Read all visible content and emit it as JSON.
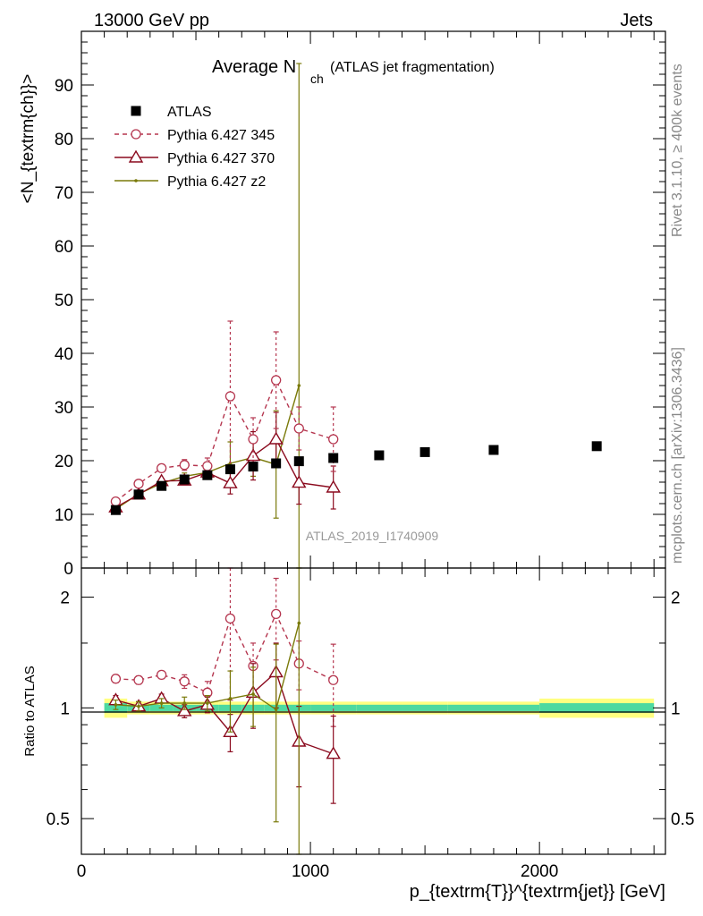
{
  "header": {
    "left": "13000 GeV pp",
    "right": "Jets"
  },
  "side_labels": {
    "top": "Rivet 3.1.10, ≥ 400k events",
    "bottom": "mcplots.cern.ch [arXiv:1306.3436]"
  },
  "analysis_label": "ATLAS_2019_I1740909",
  "colors": {
    "data": "#000000",
    "p345": "#b5364f",
    "p370": "#8b0a1e",
    "z2": "#7a7a0a",
    "band_inner": "#4dd9a0",
    "band_outer": "#ffff80"
  },
  "chart_data": [
    {
      "type": "scatter",
      "title_main": "Average N",
      "title_sub": "ch",
      "title_paren": "(ATLAS jet fragmentation)",
      "ylabel": "<N_{textrm{ch}}>",
      "xlim": [
        0,
        2550
      ],
      "ylim": [
        0,
        100
      ],
      "yticks": [
        0,
        10,
        20,
        30,
        40,
        50,
        60,
        70,
        80,
        90
      ],
      "legend_position": "top-left",
      "series": [
        {
          "name": "ATLAS",
          "key": "data",
          "style": "marker-square",
          "x": [
            150,
            250,
            350,
            450,
            550,
            650,
            750,
            850,
            950,
            1100,
            1300,
            1500,
            1800,
            2250
          ],
          "y": [
            10.8,
            13.7,
            15.3,
            16.5,
            17.3,
            18.4,
            18.9,
            19.5,
            19.9,
            20.5,
            21.0,
            21.6,
            22.0,
            22.7
          ],
          "err": [
            0.3,
            0.3,
            0.3,
            0.3,
            0.4,
            0.4,
            0.4,
            0.5,
            0.5,
            0.5,
            0.5,
            0.6,
            0.6,
            0.8
          ]
        },
        {
          "name": "Pythia 6.427 345",
          "key": "p345",
          "style": "dashed-circle",
          "x": [
            150,
            250,
            350,
            450,
            550,
            650,
            750,
            850,
            950,
            1100
          ],
          "y": [
            12.4,
            15.7,
            18.6,
            19.2,
            19.0,
            32.0,
            24.0,
            35.0,
            26.0,
            24.0
          ],
          "err": [
            0.5,
            0.6,
            0.6,
            1.0,
            1.5,
            14.0,
            4.0,
            9.0,
            4.0,
            6.0
          ]
        },
        {
          "name": "Pythia 6.427 370",
          "key": "p370",
          "style": "solid-triangle",
          "x": [
            150,
            250,
            350,
            450,
            550,
            650,
            750,
            850,
            950,
            1100
          ],
          "y": [
            11.3,
            13.7,
            16.2,
            16.3,
            17.8,
            15.8,
            20.9,
            24.0,
            15.9,
            15.0
          ],
          "err": [
            0.4,
            0.4,
            0.5,
            0.6,
            0.8,
            2.0,
            4.5,
            5.0,
            4.0,
            4.0
          ]
        },
        {
          "name": "Pythia 6.427 z2",
          "key": "z2",
          "style": "solid-dot",
          "x": [
            150,
            250,
            350,
            450,
            550,
            650,
            750,
            850,
            950
          ],
          "y": [
            11.0,
            13.8,
            15.8,
            17.1,
            17.8,
            19.5,
            20.6,
            19.3,
            34.0
          ],
          "err": [
            0.4,
            0.4,
            0.5,
            0.6,
            0.8,
            4.0,
            3.5,
            10.0,
            60.0
          ]
        }
      ]
    },
    {
      "type": "scatter",
      "ylabel": "Ratio to ATLAS",
      "xlabel": "p_{textrm{T}}^{textrm{jet}} [GeV]",
      "xlim": [
        0,
        2550
      ],
      "ylim": [
        0.4,
        2.4
      ],
      "yscale": "log",
      "yticks": [
        0.5,
        1,
        2
      ],
      "xticks": [
        0,
        1000,
        2000
      ],
      "series": [
        {
          "name": "Pythia 6.427 345",
          "key": "p345",
          "x": [
            150,
            250,
            350,
            450,
            550,
            650,
            750,
            850,
            950,
            1100
          ],
          "y": [
            1.2,
            1.19,
            1.23,
            1.18,
            1.1,
            1.75,
            1.3,
            1.8,
            1.32,
            1.19
          ],
          "err": [
            0.03,
            0.03,
            0.03,
            0.05,
            0.08,
            0.7,
            0.2,
            0.45,
            0.2,
            0.3
          ]
        },
        {
          "name": "Pythia 6.427 370",
          "key": "p370",
          "x": [
            150,
            250,
            350,
            450,
            550,
            650,
            750,
            850,
            950,
            1100
          ],
          "y": [
            1.05,
            1.01,
            1.06,
            0.98,
            1.02,
            0.86,
            1.1,
            1.25,
            0.81,
            0.75
          ],
          "err": [
            0.03,
            0.03,
            0.03,
            0.04,
            0.05,
            0.1,
            0.22,
            0.25,
            0.2,
            0.2
          ]
        },
        {
          "name": "Pythia 6.427 z2",
          "key": "z2",
          "x": [
            150,
            250,
            350,
            450,
            550,
            650,
            750,
            850,
            950
          ],
          "y": [
            1.02,
            1.01,
            1.03,
            1.03,
            1.03,
            1.06,
            1.09,
            0.99,
            1.7
          ],
          "err": [
            0.03,
            0.03,
            0.03,
            0.04,
            0.05,
            0.2,
            0.2,
            0.5,
            2.0
          ]
        }
      ],
      "band": {
        "x_edges": [
          100,
          200,
          300,
          400,
          500,
          600,
          700,
          800,
          900,
          1000,
          1200,
          1400,
          1600,
          2000,
          2500
        ],
        "inner": [
          0.03,
          0.02,
          0.02,
          0.02,
          0.02,
          0.02,
          0.02,
          0.02,
          0.02,
          0.02,
          0.02,
          0.02,
          0.02,
          0.03
        ],
        "outer": [
          0.06,
          0.04,
          0.04,
          0.04,
          0.04,
          0.04,
          0.04,
          0.04,
          0.04,
          0.04,
          0.04,
          0.04,
          0.04,
          0.06
        ]
      }
    }
  ]
}
